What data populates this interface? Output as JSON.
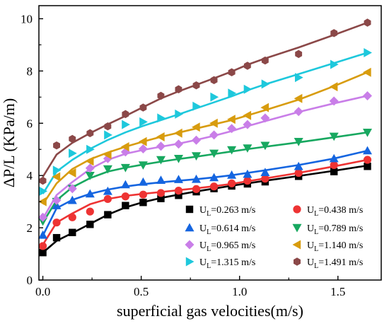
{
  "chart_data": {
    "type": "scatter",
    "xlabel": "superficial gas velocities(m/s)",
    "ylabel": "ΔP/L (KPa/m)",
    "xlim": [
      -0.02,
      1.72
    ],
    "ylim": [
      0,
      10.5
    ],
    "xticks": [
      0.0,
      0.5,
      1.0,
      1.5
    ],
    "xtick_labels": [
      "0.0",
      "0.5",
      "1.0",
      "1.5"
    ],
    "yticks": [
      0,
      2,
      4,
      6,
      8,
      10
    ],
    "ytick_labels": [
      "0",
      "2",
      "4",
      "6",
      "8",
      "10"
    ],
    "grid": false,
    "legend_position": "bottom-right",
    "x": [
      0.0,
      0.07,
      0.15,
      0.24,
      0.33,
      0.42,
      0.51,
      0.6,
      0.69,
      0.78,
      0.87,
      0.96,
      1.04,
      1.13,
      1.3,
      1.48,
      1.65
    ],
    "series": [
      {
        "legend_main": "U",
        "legend_sub": "L",
        "legend_rest": "=0.263 m/s",
        "color": "#000000",
        "marker": "square",
        "values": [
          1.05,
          1.62,
          1.82,
          2.13,
          2.5,
          2.85,
          2.97,
          3.12,
          3.24,
          3.38,
          3.5,
          3.6,
          3.68,
          3.76,
          3.97,
          4.15,
          4.35
        ],
        "fit": [
          1.05,
          1.5,
          1.8,
          2.15,
          2.5,
          2.78,
          2.98,
          3.14,
          3.27,
          3.39,
          3.5,
          3.61,
          3.7,
          3.8,
          3.98,
          4.18,
          4.38
        ]
      },
      {
        "legend_main": "U",
        "legend_sub": "L",
        "legend_rest": "=0.438 m/s",
        "color": "#ee3333",
        "marker": "circle",
        "values": [
          1.3,
          2.2,
          2.4,
          2.62,
          3.1,
          3.2,
          3.27,
          3.33,
          3.42,
          3.48,
          3.58,
          3.7,
          3.8,
          3.88,
          4.1,
          4.4,
          4.6
        ],
        "fit": [
          1.35,
          2.2,
          2.55,
          2.9,
          3.1,
          3.22,
          3.3,
          3.37,
          3.44,
          3.51,
          3.59,
          3.68,
          3.78,
          3.89,
          4.1,
          4.35,
          4.6
        ]
      },
      {
        "legend_main": "U",
        "legend_sub": "L",
        "legend_rest": "=0.614 m/s",
        "color": "#1565e0",
        "marker": "triangle-up",
        "values": [
          1.72,
          2.85,
          3.05,
          3.3,
          3.4,
          3.65,
          3.75,
          3.82,
          3.85,
          3.86,
          3.92,
          4.02,
          4.05,
          4.12,
          4.35,
          4.65,
          4.95
        ],
        "fit": [
          1.7,
          2.75,
          3.07,
          3.3,
          3.46,
          3.58,
          3.67,
          3.74,
          3.8,
          3.86,
          3.93,
          4.01,
          4.1,
          4.2,
          4.4,
          4.65,
          4.95
        ]
      },
      {
        "legend_main": "U",
        "legend_sub": "L",
        "legend_rest": "=0.789 m/s",
        "color": "#18a860",
        "marker": "triangle-down",
        "values": [
          2.25,
          3.0,
          3.5,
          4.0,
          4.25,
          4.3,
          4.4,
          4.6,
          4.65,
          4.75,
          4.85,
          4.98,
          5.05,
          5.15,
          5.3,
          5.5,
          5.65
        ],
        "fit": [
          2.2,
          3.05,
          3.55,
          3.9,
          4.15,
          4.3,
          4.42,
          4.53,
          4.63,
          4.72,
          4.82,
          4.92,
          5.01,
          5.1,
          5.27,
          5.46,
          5.65
        ]
      },
      {
        "legend_main": "U",
        "legend_sub": "L",
        "legend_rest": "=0.965 m/s",
        "color": "#c97ee8",
        "marker": "diamond",
        "values": [
          2.4,
          3.05,
          3.5,
          4.28,
          4.65,
          4.9,
          5.02,
          5.12,
          5.2,
          5.35,
          5.55,
          5.8,
          5.95,
          6.2,
          6.45,
          6.85,
          7.05
        ],
        "fit": [
          2.35,
          3.25,
          3.75,
          4.25,
          4.6,
          4.83,
          4.98,
          5.1,
          5.22,
          5.36,
          5.52,
          5.7,
          5.89,
          6.08,
          6.43,
          6.76,
          7.05
        ]
      },
      {
        "legend_main": "U",
        "legend_sub": "L",
        "legend_rest": "=1.140 m/s",
        "color": "#d89c0e",
        "marker": "triangle-left",
        "values": [
          3.0,
          3.95,
          4.1,
          4.55,
          4.8,
          5.1,
          5.3,
          5.48,
          5.62,
          5.85,
          6.0,
          6.15,
          6.3,
          6.6,
          6.95,
          7.4,
          7.95
        ],
        "fit": [
          2.9,
          3.7,
          4.25,
          4.62,
          4.88,
          5.1,
          5.3,
          5.48,
          5.64,
          5.8,
          5.96,
          6.12,
          6.3,
          6.5,
          6.9,
          7.42,
          7.95
        ]
      },
      {
        "legend_main": "U",
        "legend_sub": "L",
        "legend_rest": "=1.315 m/s",
        "color": "#1ec8dc",
        "marker": "triangle-right",
        "values": [
          3.4,
          4.2,
          4.85,
          5.0,
          5.55,
          5.95,
          6.05,
          6.2,
          6.35,
          6.65,
          7.0,
          7.15,
          7.3,
          7.5,
          7.75,
          8.25,
          8.7
        ],
        "fit": [
          3.3,
          4.15,
          4.6,
          5.02,
          5.36,
          5.65,
          5.9,
          6.12,
          6.34,
          6.57,
          6.8,
          7.03,
          7.26,
          7.49,
          7.88,
          8.3,
          8.7
        ]
      },
      {
        "legend_main": "U",
        "legend_sub": "L",
        "legend_rest": "=1.491 m/s",
        "color": "#8b4848",
        "marker": "hexagon",
        "values": [
          3.8,
          5.15,
          5.4,
          5.62,
          5.88,
          6.35,
          6.6,
          7.05,
          7.3,
          7.45,
          7.65,
          7.95,
          8.2,
          8.4,
          8.65,
          9.45,
          9.85
        ],
        "fit": [
          3.95,
          4.8,
          5.25,
          5.62,
          5.96,
          6.28,
          6.62,
          6.95,
          7.22,
          7.47,
          7.72,
          7.98,
          8.24,
          8.48,
          8.9,
          9.38,
          9.85
        ]
      }
    ]
  }
}
